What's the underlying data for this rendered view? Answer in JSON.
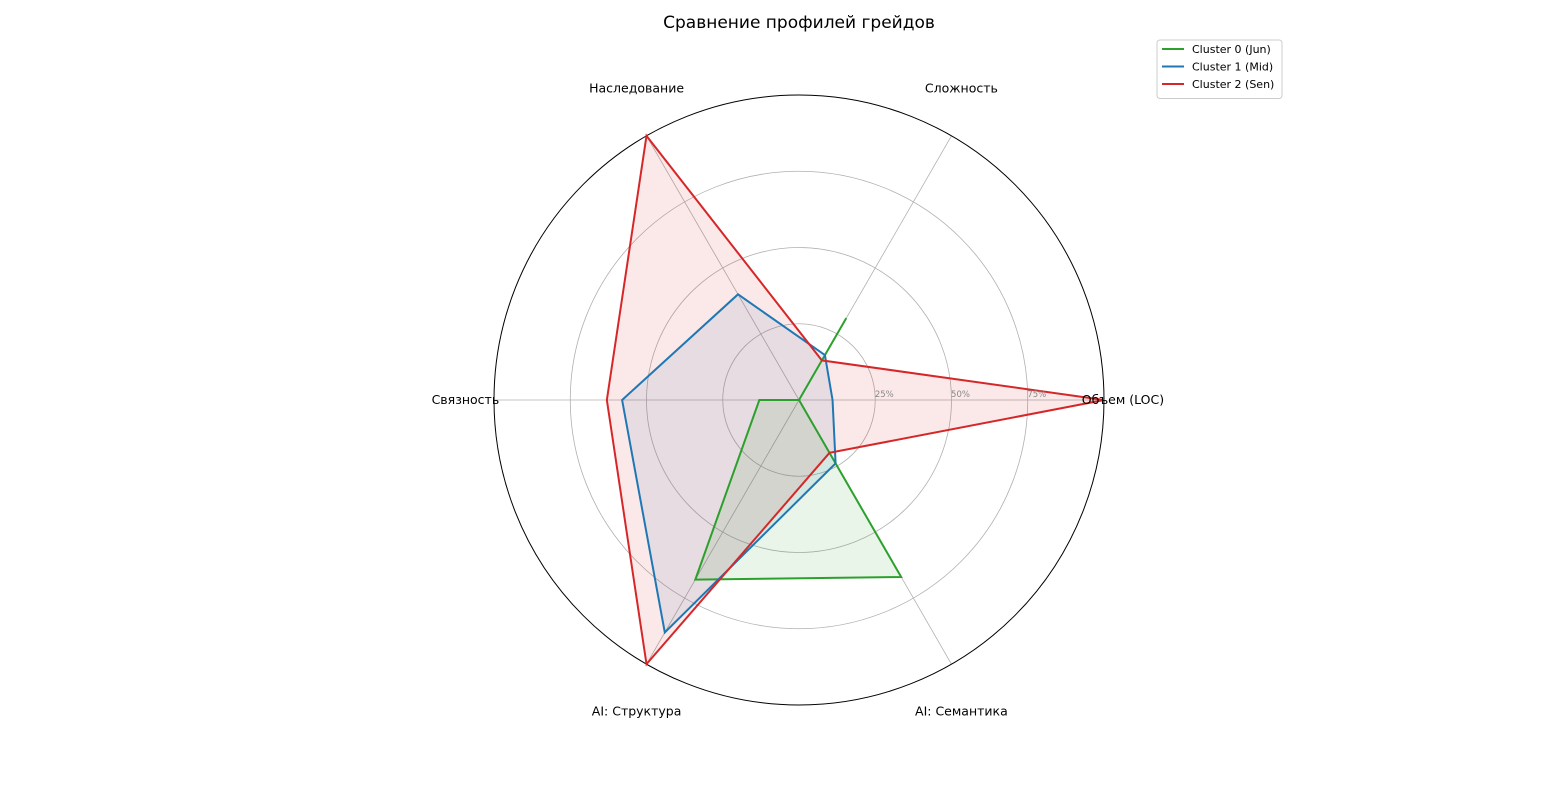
{
  "chart_data": {
    "type": "radar",
    "title": "Сравнение профилей грейдов",
    "axes": [
      "Объем (LOC)",
      "Сложность",
      "Наследование",
      "Связность",
      "AI: Структура",
      "AI: Семантика"
    ],
    "radial_ticks": [
      {
        "value": 25,
        "label": "25%"
      },
      {
        "value": 50,
        "label": "50%"
      },
      {
        "value": 75,
        "label": "75%"
      }
    ],
    "rlim": [
      0,
      100
    ],
    "legend_position": "top-right",
    "grid": true,
    "series": [
      {
        "name": "Cluster 0 (Jun)",
        "color": "#2ca02c",
        "values": [
          0,
          31,
          0,
          13,
          68,
          67
        ]
      },
      {
        "name": "Cluster 1 (Mid)",
        "color": "#1f77b4",
        "values": [
          11,
          17,
          40,
          58,
          88,
          24
        ]
      },
      {
        "name": "Cluster 2 (Sen)",
        "color": "#d62728",
        "values": [
          100,
          15,
          100,
          63,
          100,
          20
        ]
      }
    ]
  }
}
